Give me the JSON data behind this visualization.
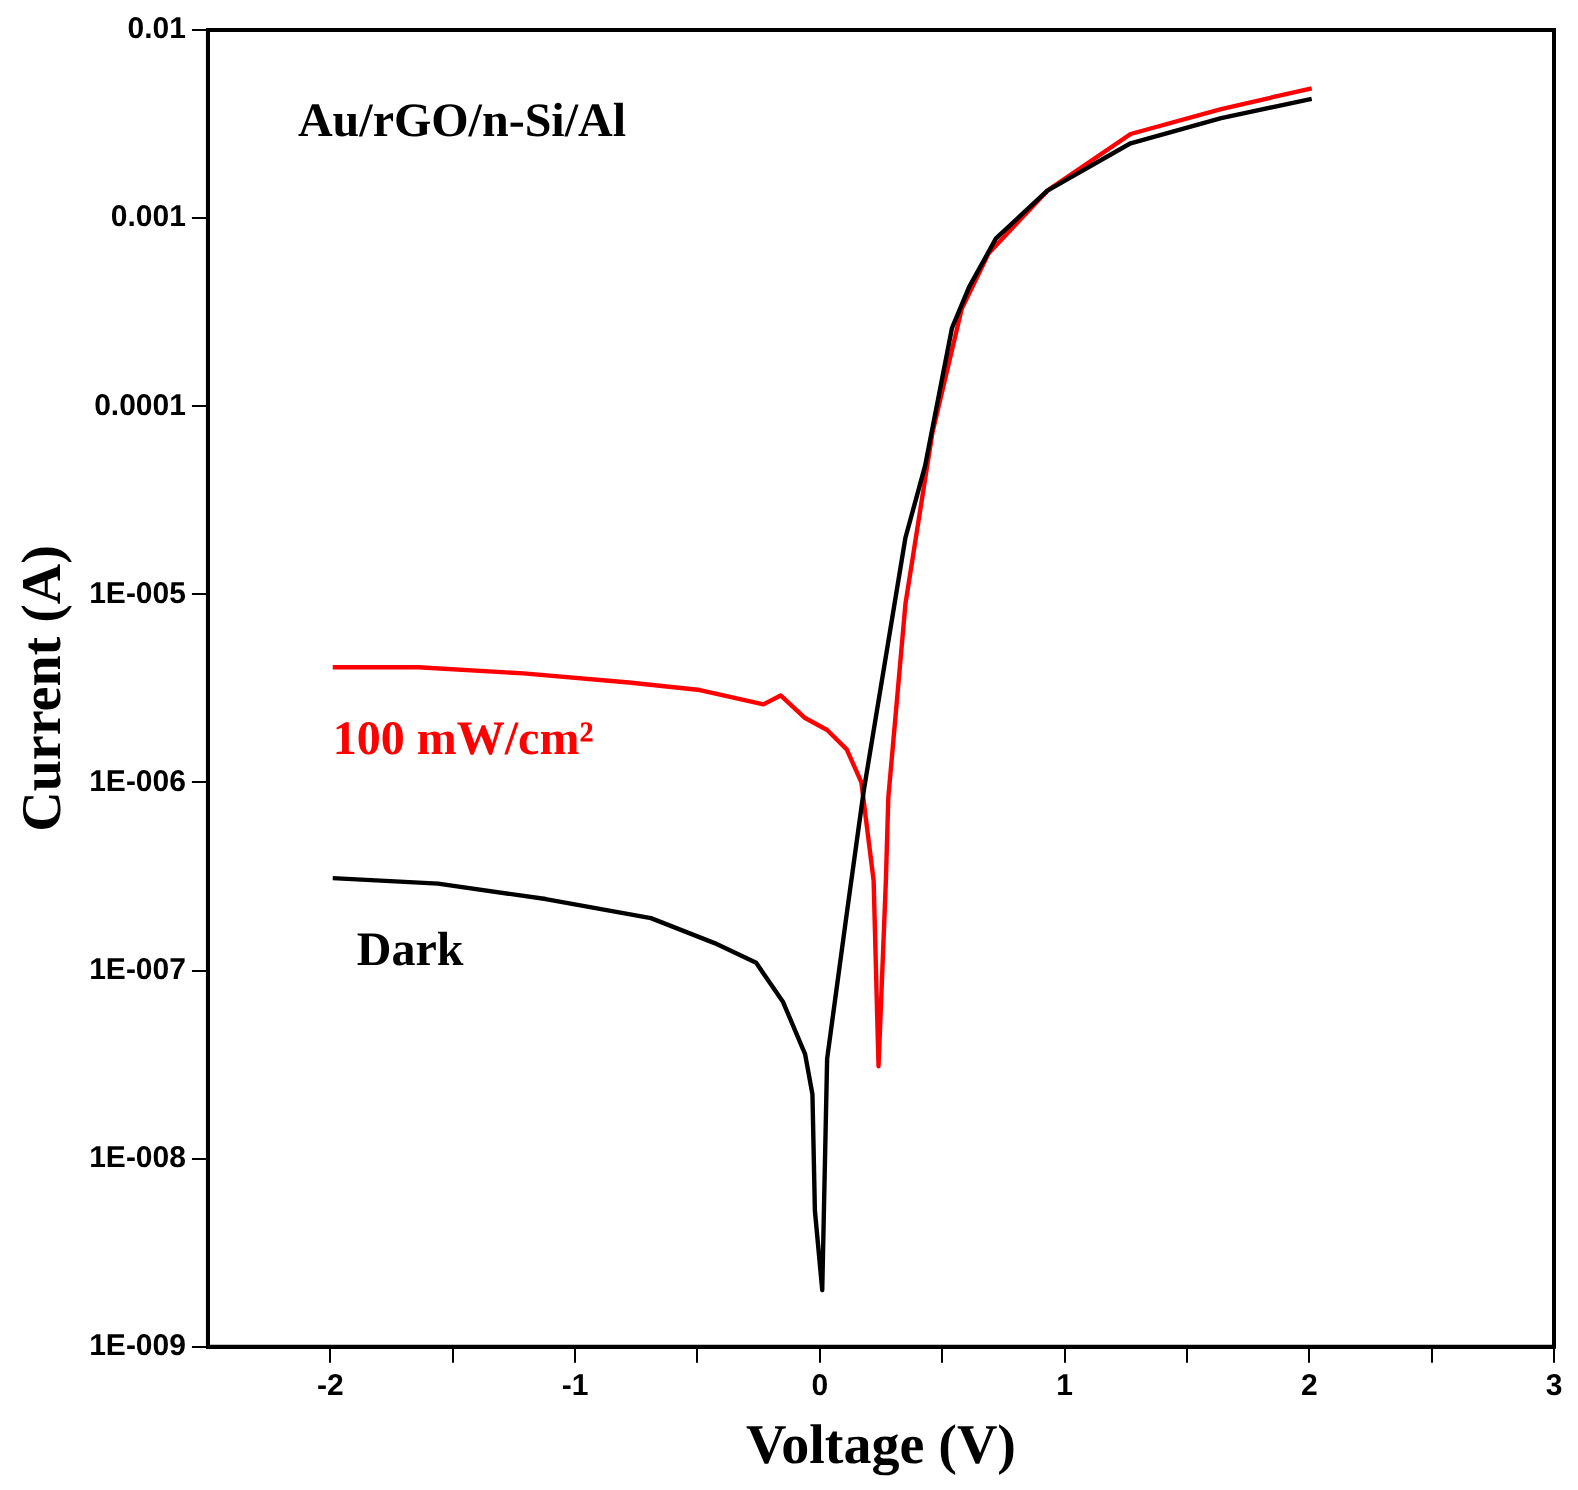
{
  "chart_data": {
    "type": "line",
    "xlabel": "Voltage (V)",
    "ylabel": "Current (A)",
    "annotations": [
      "Au/rGO/n-Si/Al"
    ],
    "log": "y",
    "grid": false,
    "marker": "none",
    "line_style": "solid",
    "xlim": [
      -2.5,
      3
    ],
    "xticks": [
      -2,
      {
        "value": -1.5,
        "label": null
      },
      -1,
      {
        "value": -0.5,
        "label": null
      },
      0,
      {
        "value": 0.5,
        "label": null
      },
      1,
      {
        "value": 1.5,
        "label": null
      },
      2,
      {
        "value": 2.5,
        "label": null
      },
      3
    ],
    "ylim": [
      1e-09,
      0.01
    ],
    "yticks": [
      {
        "value": 1e-09,
        "label": "1E-009"
      },
      {
        "value": 1e-08,
        "label": "1E-008"
      },
      {
        "value": 1e-07,
        "label": "1E-007"
      },
      {
        "value": 1e-06,
        "label": "1E-006"
      },
      {
        "value": 1e-05,
        "label": "1E-005"
      },
      0.0001,
      0.001,
      0.01
    ],
    "series": [
      {
        "name": "Dark",
        "color": "#000000",
        "x": [
          -1.99,
          -1.56,
          -1.12,
          -0.69,
          -0.43,
          -0.26,
          -0.15,
          -0.06,
          -0.03,
          -0.02,
          0.01,
          0.03,
          0.11,
          0.18,
          0.35,
          0.43,
          0.54,
          0.61,
          0.72,
          0.93,
          1.27,
          1.64,
          2.01
        ],
        "values": [
          3.1e-07,
          2.9e-07,
          2.4e-07,
          1.9e-07,
          1.4e-07,
          1.1e-07,
          6.8e-08,
          3.6e-08,
          2.2e-08,
          5.3e-09,
          2e-09,
          3.4e-08,
          2e-07,
          9.1e-07,
          2e-05,
          4.8e-05,
          0.00026,
          0.00043,
          0.00078,
          0.0014,
          0.0025,
          0.0034,
          0.0043
        ]
      },
      {
        "name": "100 mW/cm²",
        "color": "#ff0000",
        "x": [
          -1.99,
          -1.64,
          -1.21,
          -0.78,
          -0.49,
          -0.23,
          -0.16,
          -0.06,
          0.03,
          0.11,
          0.17,
          0.22,
          0.24,
          0.27,
          0.28,
          0.35,
          0.46,
          0.58,
          0.69,
          0.93,
          1.27,
          1.64,
          2.01
        ],
        "values": [
          4.1e-06,
          4.1e-06,
          3.8e-06,
          3.4e-06,
          3.1e-06,
          2.6e-06,
          2.9e-06,
          2.2e-06,
          1.9e-06,
          1.5e-06,
          1e-06,
          3e-07,
          3.1e-08,
          3e-07,
          8.3e-07,
          8.9e-06,
          7.2e-05,
          0.00033,
          0.00065,
          0.0014,
          0.0028,
          0.0038,
          0.0049
        ]
      }
    ]
  }
}
